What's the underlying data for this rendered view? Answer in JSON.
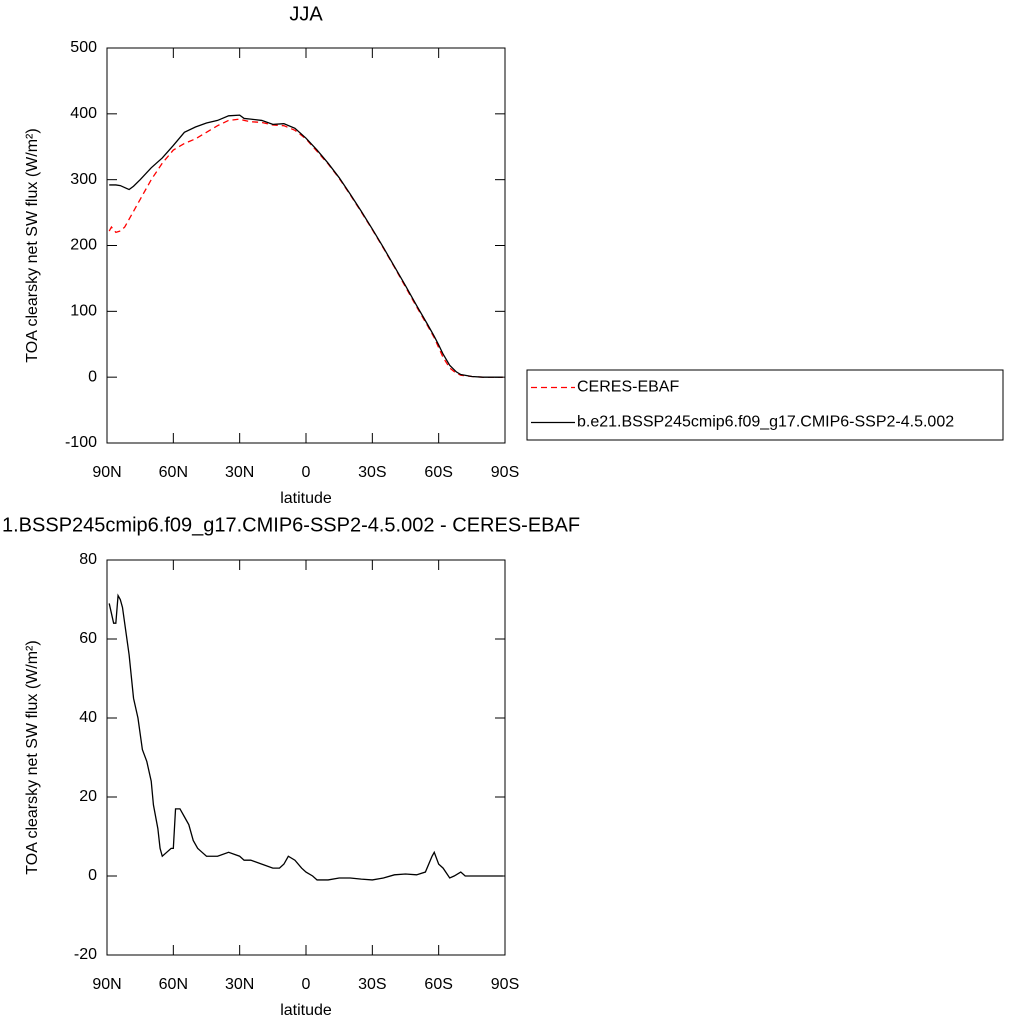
{
  "chart_data": [
    {
      "type": "line",
      "title": "JJA",
      "xlabel": "latitude",
      "ylabel": "TOA clearsky net SW flux (W/m²)",
      "x": [
        89,
        88,
        86,
        84,
        82,
        80,
        78,
        75,
        70,
        65,
        60,
        55,
        50,
        45,
        40,
        35,
        30,
        28,
        25,
        20,
        15,
        10,
        5,
        0,
        -5,
        -10,
        -15,
        -20,
        -25,
        -30,
        -35,
        -40,
        -45,
        -50,
        -55,
        -58,
        -60,
        -62,
        -65,
        -68,
        -70,
        -75,
        -80,
        -85,
        -89
      ],
      "series": [
        {
          "name": "CERES-EBAF",
          "color": "#ff0000",
          "dashed": true,
          "values": [
            222,
            228,
            220,
            222,
            228,
            240,
            252,
            270,
            300,
            325,
            345,
            355,
            362,
            372,
            382,
            390,
            392,
            390,
            388,
            387,
            383,
            382,
            375,
            362,
            343,
            324,
            302,
            277,
            251,
            224,
            196,
            167,
            137,
            107,
            78,
            60,
            45,
            30,
            14,
            6,
            3,
            1,
            0,
            0,
            0
          ]
        },
        {
          "name": "b.e21.BSSP245cmip6.f09_g17.CMIP6-SSP2-4.5.002",
          "color": "#000000",
          "dashed": false,
          "values": [
            292,
            292,
            292,
            291,
            288,
            285,
            290,
            300,
            318,
            333,
            352,
            372,
            380,
            386,
            390,
            397,
            398,
            393,
            392,
            390,
            384,
            385,
            378,
            363,
            345,
            325,
            303,
            278,
            252,
            225,
            197,
            168,
            139,
            109,
            80,
            62,
            49,
            35,
            18,
            8,
            4,
            1,
            0,
            0,
            0
          ]
        }
      ],
      "xlim": [
        90,
        -90
      ],
      "xticks": [
        {
          "value": 90,
          "label": "90N"
        },
        {
          "value": 60,
          "label": "60N"
        },
        {
          "value": 30,
          "label": "30N"
        },
        0,
        {
          "value": -30,
          "label": "30S"
        },
        {
          "value": -60,
          "label": "60S"
        },
        {
          "value": -90,
          "label": "90S"
        }
      ],
      "ylim": [
        -100,
        500
      ],
      "yticks": [
        -100,
        0,
        100,
        200,
        300,
        400,
        500
      ],
      "legend": "right"
    },
    {
      "type": "line",
      "title": "1.BSSP245cmip6.f09_g17.CMIP6-SSP2-4.5.002 - CERES-EBAF",
      "xlabel": "latitude",
      "ylabel": "TOA clearsky net SW flux (W/m²)",
      "x": [
        89,
        87,
        86,
        85,
        84,
        83,
        81,
        80,
        78,
        76,
        74,
        72,
        70,
        69,
        67,
        66,
        65,
        63,
        61,
        60,
        59,
        57,
        55,
        53,
        51,
        49,
        47,
        45,
        40,
        35,
        30,
        28,
        25,
        20,
        15,
        12,
        10,
        8,
        5,
        2,
        0,
        -3,
        -5,
        -10,
        -15,
        -20,
        -25,
        -30,
        -35,
        -40,
        -45,
        -50,
        -54,
        -57,
        -58,
        -60,
        -62,
        -65,
        -67,
        -70,
        -72,
        -75,
        -89
      ],
      "values": [
        69,
        64,
        64,
        71,
        70,
        68,
        60,
        56,
        45,
        40,
        32,
        29,
        24,
        18,
        12,
        7,
        5,
        6,
        7,
        7,
        17,
        17,
        15,
        13,
        9,
        7,
        6,
        5,
        5,
        6,
        5,
        4,
        4,
        3,
        2,
        2,
        3,
        5,
        4,
        2,
        1,
        0,
        -1,
        -1,
        -0.5,
        -0.5,
        -0.8,
        -1,
        -0.5,
        0.3,
        0.5,
        0.3,
        1,
        5,
        6,
        3,
        2,
        -0.5,
        0,
        1,
        0,
        0,
        0
      ],
      "color": "#000000",
      "xlim": [
        90,
        -90
      ],
      "xticks": [
        {
          "value": 90,
          "label": "90N"
        },
        {
          "value": 60,
          "label": "60N"
        },
        {
          "value": 30,
          "label": "30N"
        },
        0,
        {
          "value": -30,
          "label": "30S"
        },
        {
          "value": -60,
          "label": "60S"
        },
        {
          "value": -90,
          "label": "90S"
        }
      ],
      "ylim": [
        -20,
        80
      ],
      "yticks": [
        -20,
        0,
        20,
        40,
        60,
        80
      ]
    }
  ]
}
